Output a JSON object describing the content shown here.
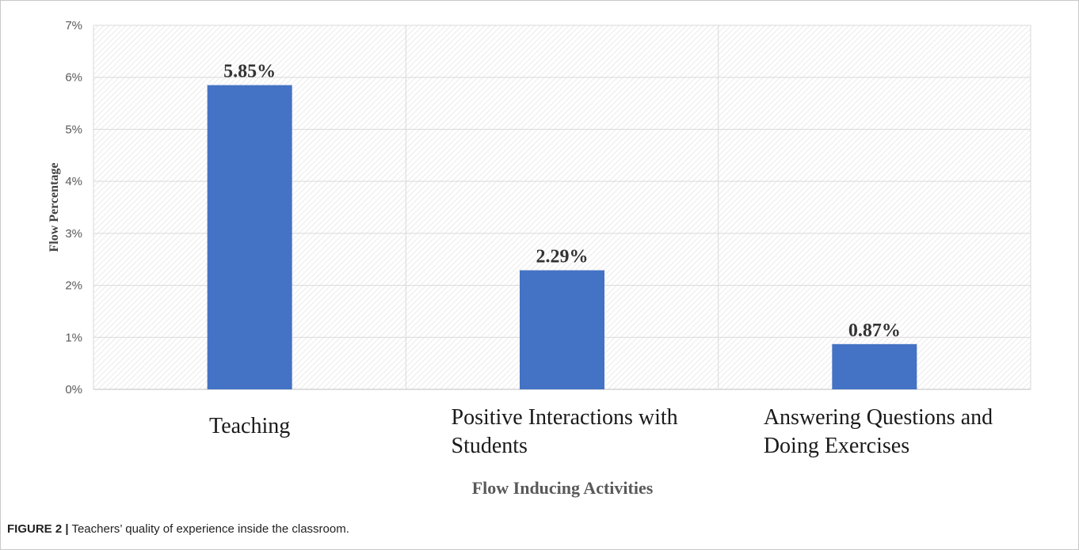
{
  "chart_data": {
    "type": "bar",
    "categories": [
      [
        "Teaching"
      ],
      [
        "Positive Interactions with",
        "Students"
      ],
      [
        "Answering Questions and",
        "Doing Exercises"
      ]
    ],
    "values": [
      5.85,
      2.29,
      0.87
    ],
    "data_labels": [
      "5.85%",
      "2.29%",
      "0.87%"
    ],
    "ylim": [
      0,
      7
    ],
    "yticks": [
      0,
      1,
      2,
      3,
      4,
      5,
      6,
      7
    ],
    "ytick_format": "%",
    "xlabel": "Flow Inducing Activities",
    "ylabel": "Flow Percentage",
    "grid": true,
    "bar_color": "#4472C4",
    "plot_background": "hatched"
  },
  "caption": {
    "label": "FIGURE 2 |",
    "text": " Teachers’ quality of experience inside the classroom."
  }
}
